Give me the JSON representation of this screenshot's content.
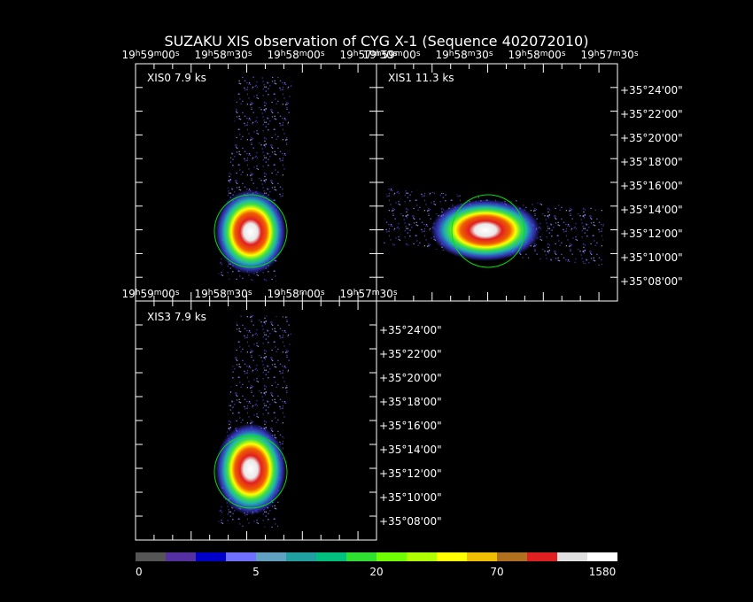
{
  "title": "SUZAKU XIS observation of CYG X-1  (Sequence 402072010)",
  "panels": [
    {
      "label": "XIS0 7.9 ks"
    },
    {
      "label": "XIS1 11.3 ks"
    },
    {
      "label": "XIS3 7.9 ks"
    }
  ],
  "ra_labels": [
    [
      "19",
      "h",
      "59",
      "m",
      "00",
      "s"
    ],
    [
      "19",
      "h",
      "58",
      "m",
      "30",
      "s"
    ],
    [
      "19",
      "h",
      "58",
      "m",
      "00",
      "s"
    ],
    [
      "19",
      "h",
      "57",
      "m",
      "30",
      "s"
    ]
  ],
  "dec_labels": [
    "+35°24'00\"",
    "+35°22'00\"",
    "+35°20'00\"",
    "+35°18'00\"",
    "+35°16'00\"",
    "+35°14'00\"",
    "+35°12'00\"",
    "+35°10'00\"",
    "+35°08'00\""
  ],
  "colorbar": {
    "ticks": [
      0,
      5,
      20,
      70,
      1580
    ]
  }
}
